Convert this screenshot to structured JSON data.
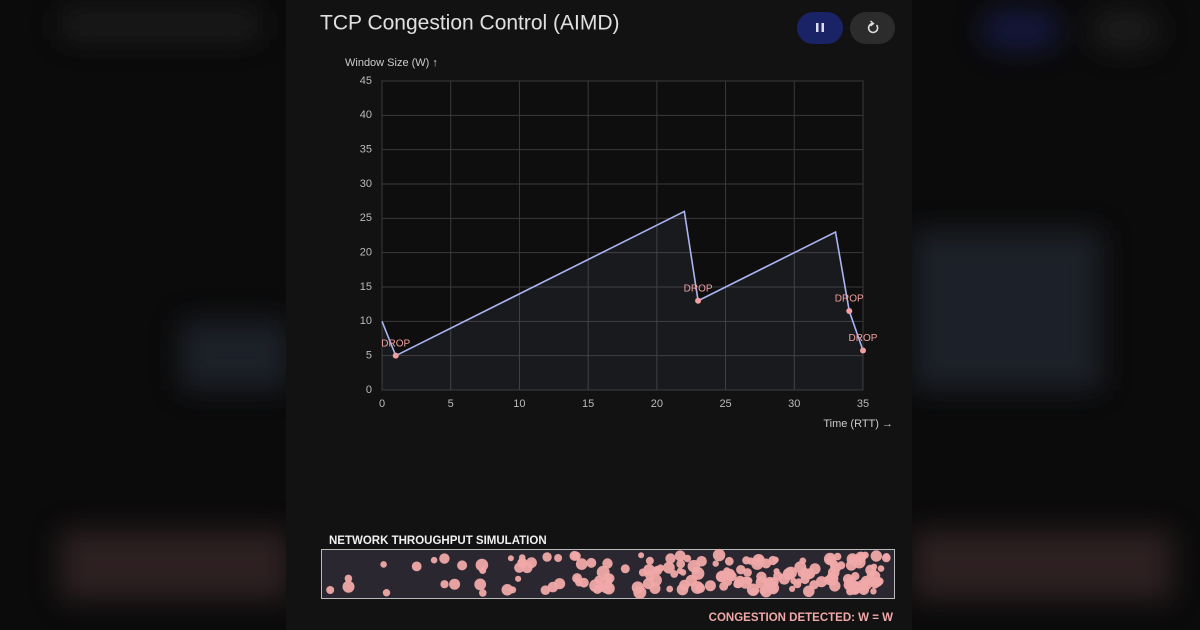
{
  "header": {
    "title": "TCP Congestion Control (AIMD)"
  },
  "chart_data": {
    "type": "line",
    "y_label": "Window Size (W) ↑",
    "x_label": "Time (RTT) →",
    "x": [
      0,
      1,
      22,
      23,
      33,
      34,
      35
    ],
    "values": [
      10,
      5,
      26,
      13,
      23,
      11.5,
      5.75
    ],
    "color": "#aab4f0",
    "drop_color": "#f0a0a0",
    "annotations": [
      {
        "text": "DROP",
        "x": 1
      },
      {
        "text": "DROP",
        "x": 23
      },
      {
        "text": "DROP",
        "x": 34
      },
      {
        "text": "DROP",
        "x": 35
      }
    ],
    "xlim": [
      0,
      35
    ],
    "xticks": [
      0,
      5,
      10,
      15,
      20,
      25,
      30,
      35
    ],
    "ylim": [
      0,
      45
    ],
    "yticks": [
      0,
      5,
      10,
      15,
      20,
      25,
      30,
      35,
      40,
      45
    ],
    "grid": true
  },
  "simulation": {
    "title": "NETWORK THROUGHPUT SIMULATION",
    "status": "CONGESTION DETECTED: W = W"
  }
}
